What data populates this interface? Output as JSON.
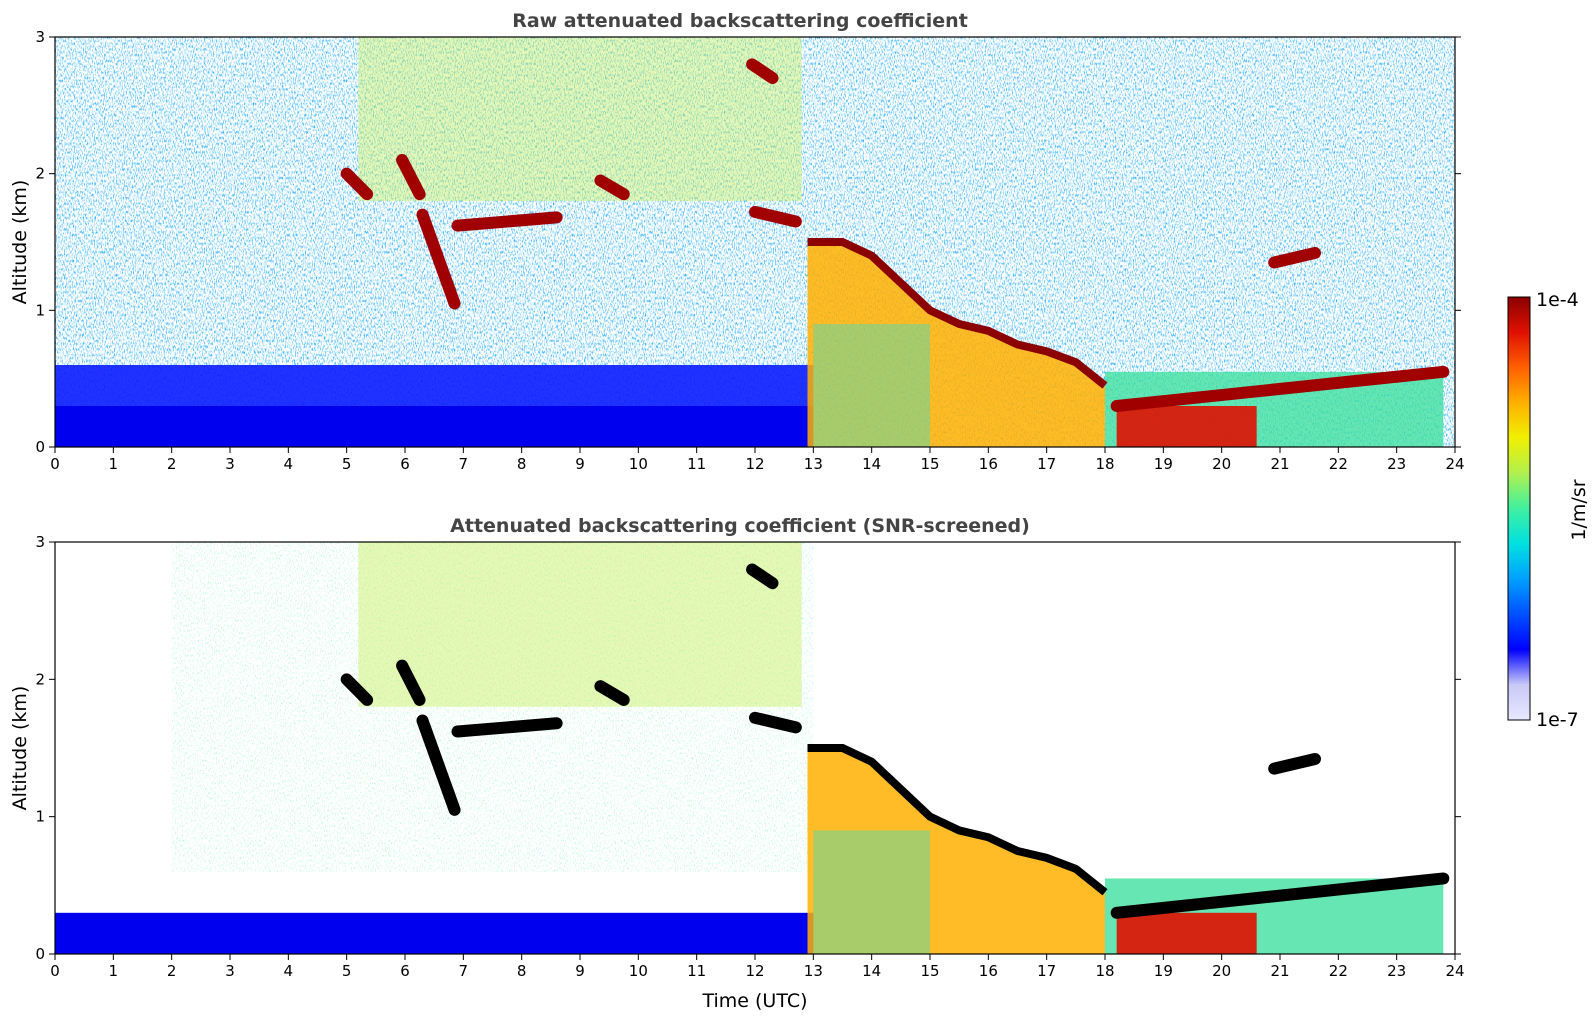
{
  "chart_data": [
    {
      "type": "heatmap",
      "title": "Raw attenuated backscattering coefficient",
      "xlabel": "",
      "ylabel": "Altitude (km)",
      "xlim": [
        0,
        24
      ],
      "ylim": [
        0,
        3
      ],
      "xticks": [
        "0",
        "1",
        "2",
        "3",
        "4",
        "5",
        "6",
        "7",
        "8",
        "9",
        "10",
        "11",
        "12",
        "13",
        "14",
        "15",
        "16",
        "17",
        "18",
        "19",
        "20",
        "21",
        "22",
        "23",
        "24"
      ],
      "yticks": [
        "0",
        "1",
        "2",
        "3"
      ],
      "screened": false
    },
    {
      "type": "heatmap",
      "title": "Attenuated backscattering coefficient (SNR-screened)",
      "xlabel": "Time (UTC)",
      "ylabel": "Altitude (km)",
      "xlim": [
        0,
        24
      ],
      "ylim": [
        0,
        3
      ],
      "xticks": [
        "0",
        "1",
        "2",
        "3",
        "4",
        "5",
        "6",
        "7",
        "8",
        "9",
        "10",
        "11",
        "12",
        "13",
        "14",
        "15",
        "16",
        "17",
        "18",
        "19",
        "20",
        "21",
        "22",
        "23",
        "24"
      ],
      "yticks": [
        "0",
        "1",
        "2",
        "3"
      ],
      "screened": true
    }
  ],
  "colorbar": {
    "label": "1/m/sr",
    "max_label": "1e-4",
    "min_label": "1e-7",
    "colors": [
      "#e8e8ff",
      "#c8c8f8",
      "#0000ff",
      "#0050ff",
      "#00a0ff",
      "#00e0e0",
      "#40f0a0",
      "#b0f050",
      "#f0f000",
      "#ffb000",
      "#ff6000",
      "#e01000",
      "#8b0000"
    ]
  },
  "scene": {
    "cloud_base_layer": {
      "x": [
        12.9,
        13.5,
        14,
        14.5,
        15,
        15.5,
        16,
        16.5,
        17,
        17.5,
        18
      ],
      "y": [
        1.5,
        1.5,
        1.4,
        1.2,
        1.0,
        0.9,
        0.85,
        0.75,
        0.7,
        0.62,
        0.45
      ]
    },
    "cloud_segments": [
      {
        "x0": 5.0,
        "x1": 5.35,
        "y0": 2.0,
        "y1": 1.85
      },
      {
        "x0": 5.95,
        "x1": 6.25,
        "y0": 2.1,
        "y1": 1.85
      },
      {
        "x0": 6.3,
        "x1": 6.85,
        "y0": 1.7,
        "y1": 1.05
      },
      {
        "x0": 6.9,
        "x1": 8.6,
        "y0": 1.62,
        "y1": 1.68
      },
      {
        "x0": 9.35,
        "x1": 9.75,
        "y0": 1.95,
        "y1": 1.85
      },
      {
        "x0": 11.95,
        "x1": 12.3,
        "y0": 2.8,
        "y1": 2.7
      },
      {
        "x0": 12.0,
        "x1": 12.7,
        "y0": 1.72,
        "y1": 1.65
      },
      {
        "x0": 20.9,
        "x1": 21.6,
        "y0": 1.35,
        "y1": 1.42
      },
      {
        "x0": 18.2,
        "x1": 23.8,
        "y0": 0.3,
        "y1": 0.55
      }
    ]
  }
}
